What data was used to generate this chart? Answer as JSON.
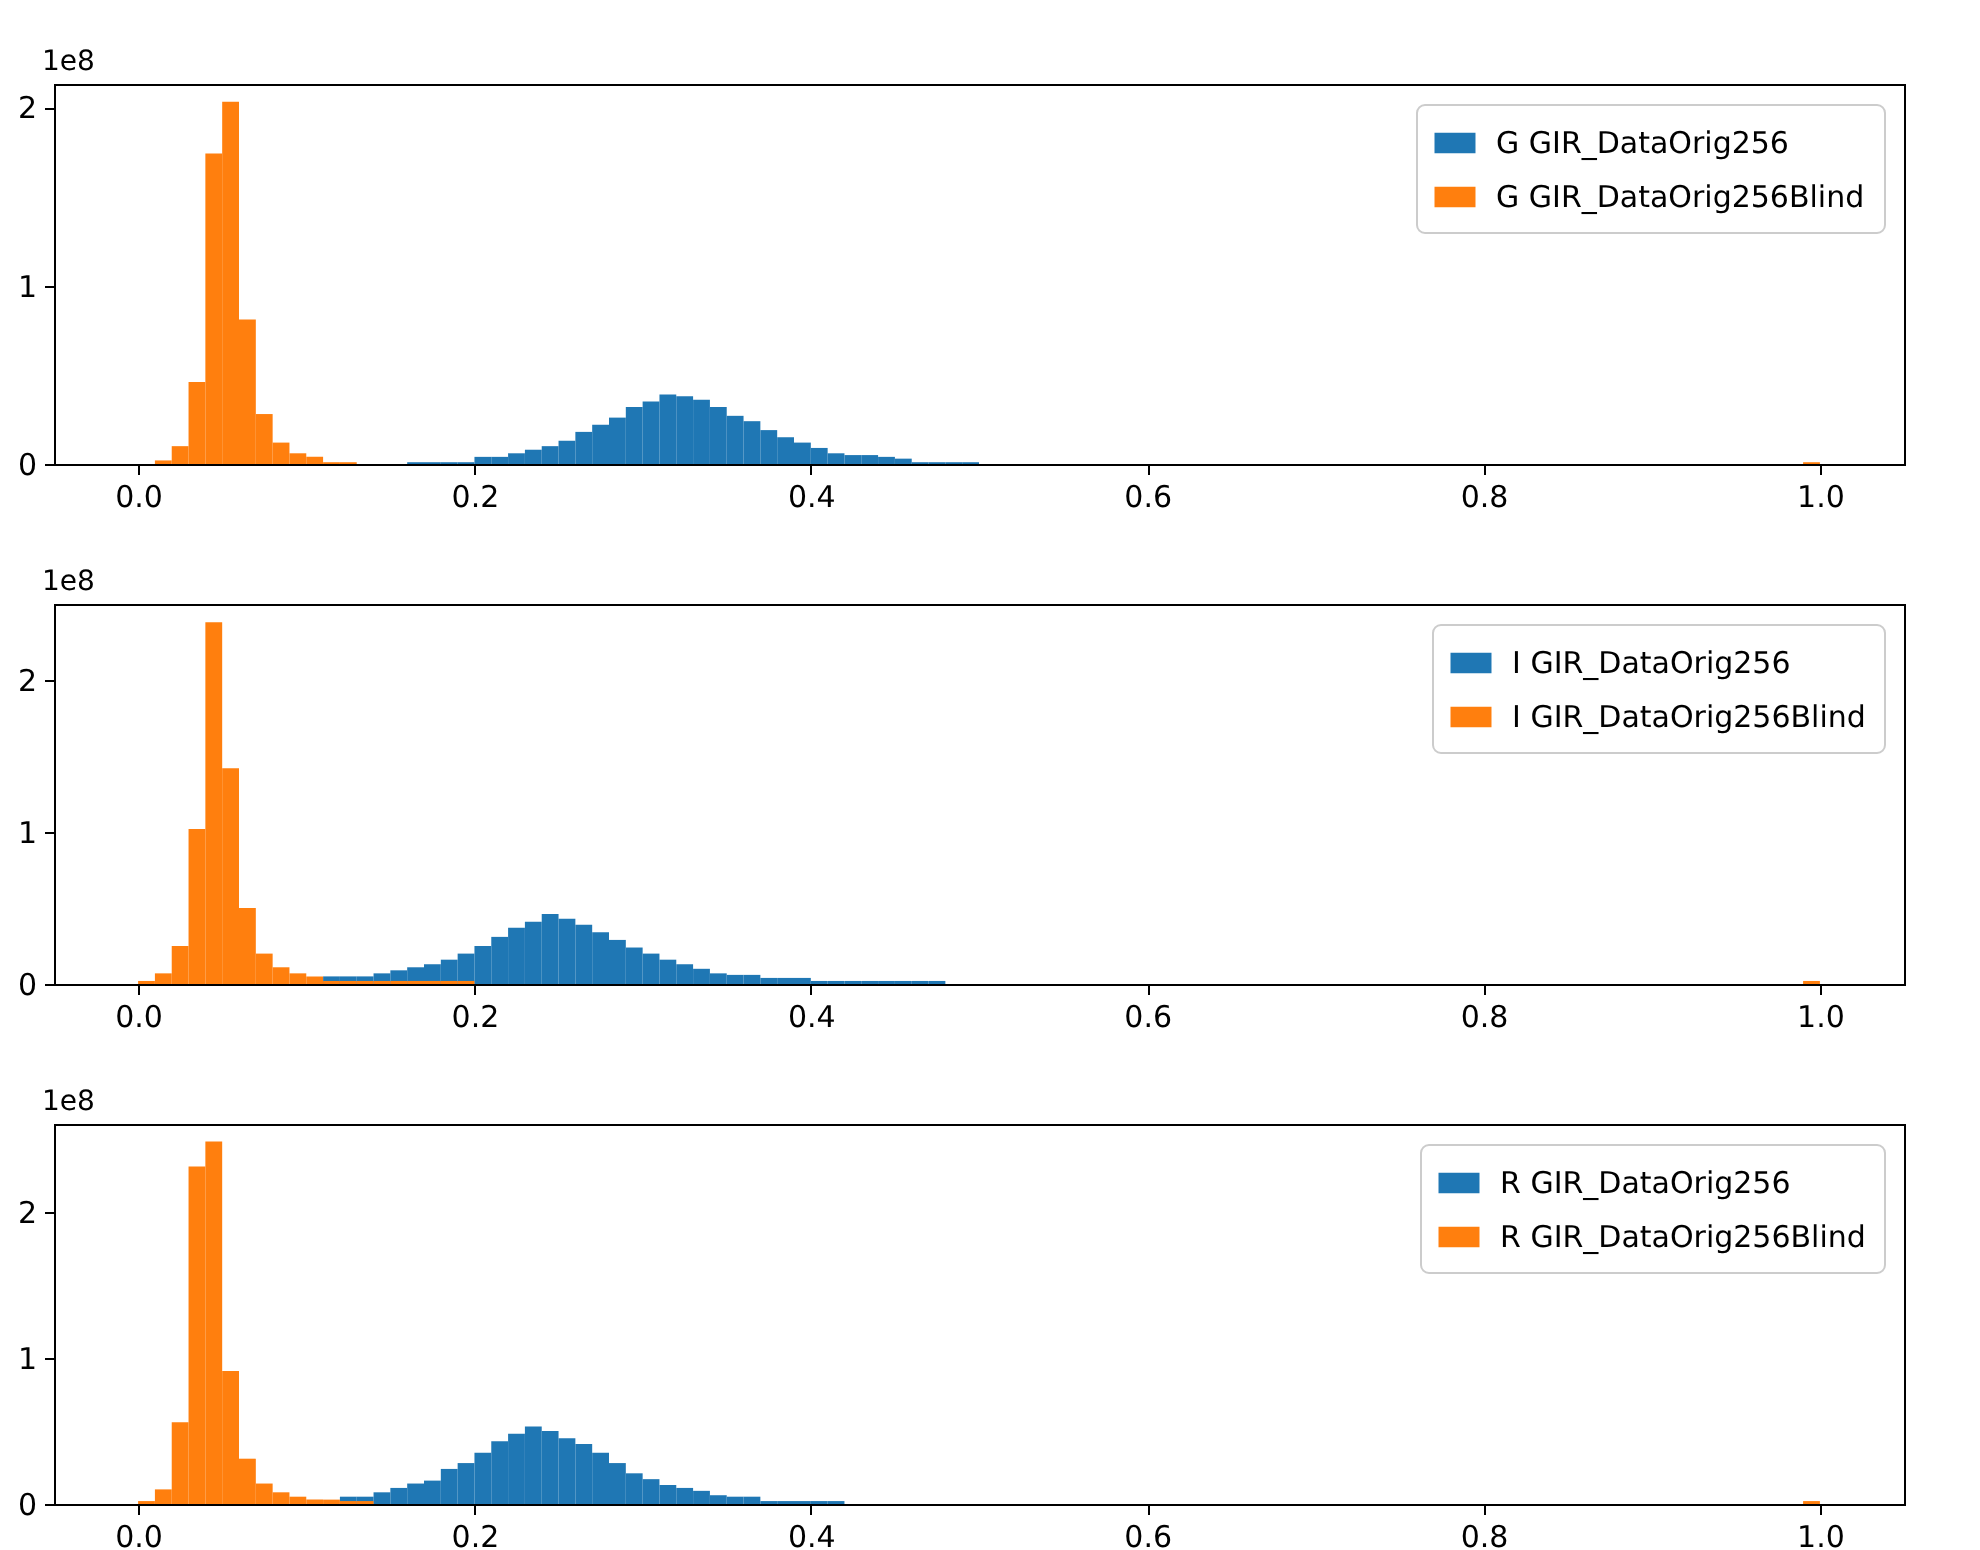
{
  "chart_data": [
    {
      "type": "histogram",
      "annotations": [
        "1e8"
      ],
      "legend": "top right",
      "grid": false,
      "xlim": [
        -0.05,
        1.05
      ],
      "xticks": [
        {
          "value": 0,
          "label": "0.0"
        },
        {
          "value": 0.2,
          "label": "0.2"
        },
        {
          "value": 0.4,
          "label": "0.4"
        },
        {
          "value": 0.6,
          "label": "0.6"
        },
        {
          "value": 0.8,
          "label": "0.8"
        },
        {
          "value": 1,
          "label": "1.0"
        }
      ],
      "ylim": [
        0,
        2.13
      ],
      "yticks": [
        0,
        1,
        2
      ],
      "bins": [
        0,
        0.01,
        0.02,
        0.03,
        0.04,
        0.05,
        0.06,
        0.07,
        0.08,
        0.09,
        0.1,
        0.11,
        0.12,
        0.13,
        0.14,
        0.15,
        0.16,
        0.17,
        0.18,
        0.19,
        0.2,
        0.21,
        0.22,
        0.23,
        0.24,
        0.25,
        0.26,
        0.27,
        0.28,
        0.29,
        0.3,
        0.31,
        0.32,
        0.33,
        0.34,
        0.35,
        0.36,
        0.37,
        0.38,
        0.39,
        0.4,
        0.41,
        0.42,
        0.43,
        0.44,
        0.45,
        0.46,
        0.47,
        0.48,
        0.49,
        0.5,
        0.51,
        0.52,
        0.53,
        0.54,
        0.55,
        0.56,
        0.57,
        0.58,
        0.59,
        0.6,
        0.61,
        0.62,
        0.63,
        0.64,
        0.65,
        0.66,
        0.67,
        0.68,
        0.69,
        0.7,
        0.71,
        0.72,
        0.73,
        0.74,
        0.75,
        0.76,
        0.77,
        0.78,
        0.79,
        0.8,
        0.81,
        0.82,
        0.83,
        0.84,
        0.85,
        0.86,
        0.87,
        0.88,
        0.89,
        0.9,
        0.91,
        0.92,
        0.93,
        0.94,
        0.95,
        0.96,
        0.97,
        0.98,
        0.99,
        1
      ],
      "series": [
        {
          "name": "G GIR_DataOrig256",
          "color": "#1f77b4",
          "values": [
            0,
            0,
            0,
            0,
            0,
            0,
            0,
            0,
            0,
            0,
            0,
            0,
            0,
            0,
            0,
            0,
            0.01,
            0.01,
            0.01,
            0.01,
            0.04,
            0.04,
            0.06,
            0.08,
            0.1,
            0.13,
            0.18,
            0.22,
            0.26,
            0.32,
            0.35,
            0.39,
            0.38,
            0.36,
            0.32,
            0.27,
            0.24,
            0.19,
            0.15,
            0.12,
            0.09,
            0.06,
            0.05,
            0.05,
            0.04,
            0.03,
            0.01,
            0.01,
            0.01,
            0.01,
            0,
            0,
            0,
            0,
            0,
            0,
            0,
            0,
            0,
            0,
            0,
            0,
            0,
            0,
            0,
            0,
            0,
            0,
            0,
            0,
            0,
            0,
            0,
            0,
            0,
            0,
            0,
            0,
            0,
            0,
            0,
            0,
            0,
            0,
            0,
            0,
            0,
            0,
            0,
            0,
            0,
            0,
            0,
            0,
            0,
            0,
            0,
            0,
            0,
            0
          ]
        },
        {
          "name": "G GIR_DataOrig256Blind",
          "color": "#ff7f0e",
          "values": [
            0,
            0.02,
            0.1,
            0.46,
            1.74,
            2.03,
            0.81,
            0.28,
            0.12,
            0.06,
            0.04,
            0.01,
            0.01,
            0,
            0,
            0,
            0,
            0,
            0,
            0,
            0,
            0,
            0,
            0,
            0,
            0,
            0,
            0,
            0,
            0,
            0,
            0,
            0,
            0,
            0,
            0,
            0,
            0,
            0,
            0,
            0,
            0,
            0,
            0,
            0,
            0,
            0,
            0,
            0,
            0,
            0,
            0,
            0,
            0,
            0,
            0,
            0,
            0,
            0,
            0,
            0,
            0,
            0,
            0,
            0,
            0,
            0,
            0,
            0,
            0,
            0,
            0,
            0,
            0,
            0,
            0,
            0,
            0,
            0,
            0,
            0,
            0,
            0,
            0,
            0,
            0,
            0,
            0,
            0,
            0,
            0,
            0,
            0,
            0,
            0,
            0,
            0,
            0,
            0,
            0.01
          ]
        }
      ]
    },
    {
      "type": "histogram",
      "annotations": [
        "1e8"
      ],
      "legend": "top right",
      "grid": false,
      "xlim": [
        -0.05,
        1.05
      ],
      "xticks": [
        {
          "value": 0,
          "label": "0.0"
        },
        {
          "value": 0.2,
          "label": "0.2"
        },
        {
          "value": 0.4,
          "label": "0.4"
        },
        {
          "value": 0.6,
          "label": "0.6"
        },
        {
          "value": 0.8,
          "label": "0.8"
        },
        {
          "value": 1,
          "label": "1.0"
        }
      ],
      "ylim": [
        0,
        2.5
      ],
      "yticks": [
        0,
        1,
        2
      ],
      "bins": [
        0,
        0.01,
        0.02,
        0.03,
        0.04,
        0.05,
        0.06,
        0.07,
        0.08,
        0.09,
        0.1,
        0.11,
        0.12,
        0.13,
        0.14,
        0.15,
        0.16,
        0.17,
        0.18,
        0.19,
        0.2,
        0.21,
        0.22,
        0.23,
        0.24,
        0.25,
        0.26,
        0.27,
        0.28,
        0.29,
        0.3,
        0.31,
        0.32,
        0.33,
        0.34,
        0.35,
        0.36,
        0.37,
        0.38,
        0.39,
        0.4,
        0.41,
        0.42,
        0.43,
        0.44,
        0.45,
        0.46,
        0.47,
        0.48,
        0.49,
        0.5,
        0.51,
        0.52,
        0.53,
        0.54,
        0.55,
        0.56,
        0.57,
        0.58,
        0.59,
        0.6,
        0.61,
        0.62,
        0.63,
        0.64,
        0.65,
        0.66,
        0.67,
        0.68,
        0.69,
        0.7,
        0.71,
        0.72,
        0.73,
        0.74,
        0.75,
        0.76,
        0.77,
        0.78,
        0.79,
        0.8,
        0.81,
        0.82,
        0.83,
        0.84,
        0.85,
        0.86,
        0.87,
        0.88,
        0.89,
        0.9,
        0.91,
        0.92,
        0.93,
        0.94,
        0.95,
        0.96,
        0.97,
        0.98,
        0.99,
        1
      ],
      "series": [
        {
          "name": "I GIR_DataOrig256",
          "color": "#1f77b4",
          "values": [
            0,
            0,
            0,
            0,
            0,
            0,
            0,
            0,
            0,
            0,
            0,
            0.05,
            0.05,
            0.05,
            0.07,
            0.09,
            0.11,
            0.13,
            0.16,
            0.2,
            0.25,
            0.31,
            0.37,
            0.41,
            0.46,
            0.43,
            0.39,
            0.34,
            0.29,
            0.24,
            0.2,
            0.16,
            0.13,
            0.1,
            0.07,
            0.06,
            0.06,
            0.04,
            0.04,
            0.04,
            0.02,
            0.02,
            0.02,
            0.02,
            0.02,
            0.02,
            0.02,
            0.02,
            0,
            0,
            0,
            0,
            0,
            0,
            0,
            0,
            0,
            0,
            0,
            0,
            0,
            0,
            0,
            0,
            0,
            0,
            0,
            0,
            0,
            0,
            0,
            0,
            0,
            0,
            0,
            0,
            0,
            0,
            0,
            0,
            0,
            0,
            0,
            0,
            0,
            0,
            0,
            0,
            0,
            0,
            0,
            0,
            0,
            0,
            0,
            0,
            0,
            0,
            0,
            0
          ]
        },
        {
          "name": "I GIR_DataOrig256Blind",
          "color": "#ff7f0e",
          "values": [
            0.02,
            0.07,
            0.25,
            1.02,
            2.38,
            1.42,
            0.5,
            0.2,
            0.11,
            0.07,
            0.05,
            0.02,
            0.02,
            0.02,
            0.02,
            0.02,
            0.02,
            0.02,
            0.02,
            0.02,
            0,
            0,
            0,
            0,
            0,
            0,
            0,
            0,
            0,
            0,
            0,
            0,
            0,
            0,
            0,
            0,
            0,
            0,
            0,
            0,
            0,
            0,
            0,
            0,
            0,
            0,
            0,
            0,
            0,
            0,
            0,
            0,
            0,
            0,
            0,
            0,
            0,
            0,
            0,
            0,
            0,
            0,
            0,
            0,
            0,
            0,
            0,
            0,
            0,
            0,
            0,
            0,
            0,
            0,
            0,
            0,
            0,
            0,
            0,
            0,
            0,
            0,
            0,
            0,
            0,
            0,
            0,
            0,
            0,
            0,
            0,
            0,
            0,
            0,
            0,
            0,
            0,
            0,
            0,
            0.02
          ]
        }
      ]
    },
    {
      "type": "histogram",
      "annotations": [
        "1e8"
      ],
      "legend": "top right",
      "grid": false,
      "xlim": [
        -0.05,
        1.05
      ],
      "xticks": [
        {
          "value": 0,
          "label": "0.0"
        },
        {
          "value": 0.2,
          "label": "0.2"
        },
        {
          "value": 0.4,
          "label": "0.4"
        },
        {
          "value": 0.6,
          "label": "0.6"
        },
        {
          "value": 0.8,
          "label": "0.8"
        },
        {
          "value": 1,
          "label": "1.0"
        }
      ],
      "ylim": [
        0,
        2.6
      ],
      "yticks": [
        0,
        1,
        2
      ],
      "bins": [
        0,
        0.01,
        0.02,
        0.03,
        0.04,
        0.05,
        0.06,
        0.07,
        0.08,
        0.09,
        0.1,
        0.11,
        0.12,
        0.13,
        0.14,
        0.15,
        0.16,
        0.17,
        0.18,
        0.19,
        0.2,
        0.21,
        0.22,
        0.23,
        0.24,
        0.25,
        0.26,
        0.27,
        0.28,
        0.29,
        0.3,
        0.31,
        0.32,
        0.33,
        0.34,
        0.35,
        0.36,
        0.37,
        0.38,
        0.39,
        0.4,
        0.41,
        0.42,
        0.43,
        0.44,
        0.45,
        0.46,
        0.47,
        0.48,
        0.49,
        0.5,
        0.51,
        0.52,
        0.53,
        0.54,
        0.55,
        0.56,
        0.57,
        0.58,
        0.59,
        0.6,
        0.61,
        0.62,
        0.63,
        0.64,
        0.65,
        0.66,
        0.67,
        0.68,
        0.69,
        0.7,
        0.71,
        0.72,
        0.73,
        0.74,
        0.75,
        0.76,
        0.77,
        0.78,
        0.79,
        0.8,
        0.81,
        0.82,
        0.83,
        0.84,
        0.85,
        0.86,
        0.87,
        0.88,
        0.89,
        0.9,
        0.91,
        0.92,
        0.93,
        0.94,
        0.95,
        0.96,
        0.97,
        0.98,
        0.99,
        1
      ],
      "series": [
        {
          "name": "R GIR_DataOrig256",
          "color": "#1f77b4",
          "values": [
            0,
            0,
            0,
            0,
            0,
            0,
            0,
            0,
            0,
            0,
            0,
            0,
            0.05,
            0.05,
            0.08,
            0.11,
            0.14,
            0.16,
            0.24,
            0.28,
            0.35,
            0.43,
            0.48,
            0.53,
            0.5,
            0.45,
            0.41,
            0.35,
            0.28,
            0.21,
            0.17,
            0.13,
            0.11,
            0.09,
            0.06,
            0.05,
            0.05,
            0.02,
            0.02,
            0.02,
            0.02,
            0.02,
            0,
            0,
            0,
            0,
            0,
            0,
            0,
            0,
            0,
            0,
            0,
            0,
            0,
            0,
            0,
            0,
            0,
            0,
            0,
            0,
            0,
            0,
            0,
            0,
            0,
            0,
            0,
            0,
            0,
            0,
            0,
            0,
            0,
            0,
            0,
            0,
            0,
            0,
            0,
            0,
            0,
            0,
            0,
            0,
            0,
            0,
            0,
            0,
            0,
            0,
            0,
            0,
            0,
            0,
            0,
            0,
            0,
            0
          ]
        },
        {
          "name": "R GIR_DataOrig256Blind",
          "color": "#ff7f0e",
          "values": [
            0.02,
            0.1,
            0.56,
            2.31,
            2.48,
            0.91,
            0.31,
            0.14,
            0.08,
            0.05,
            0.03,
            0.03,
            0.02,
            0.02,
            0,
            0,
            0,
            0,
            0,
            0,
            0,
            0,
            0,
            0,
            0,
            0,
            0,
            0,
            0,
            0,
            0,
            0,
            0,
            0,
            0,
            0,
            0,
            0,
            0,
            0,
            0,
            0,
            0,
            0,
            0,
            0,
            0,
            0,
            0,
            0,
            0,
            0,
            0,
            0,
            0,
            0,
            0,
            0,
            0,
            0,
            0,
            0,
            0,
            0,
            0,
            0,
            0,
            0,
            0,
            0,
            0,
            0,
            0,
            0,
            0,
            0,
            0,
            0,
            0,
            0,
            0,
            0,
            0,
            0,
            0,
            0,
            0,
            0,
            0,
            0,
            0,
            0,
            0,
            0,
            0,
            0,
            0,
            0,
            0,
            0.02
          ]
        }
      ]
    }
  ]
}
